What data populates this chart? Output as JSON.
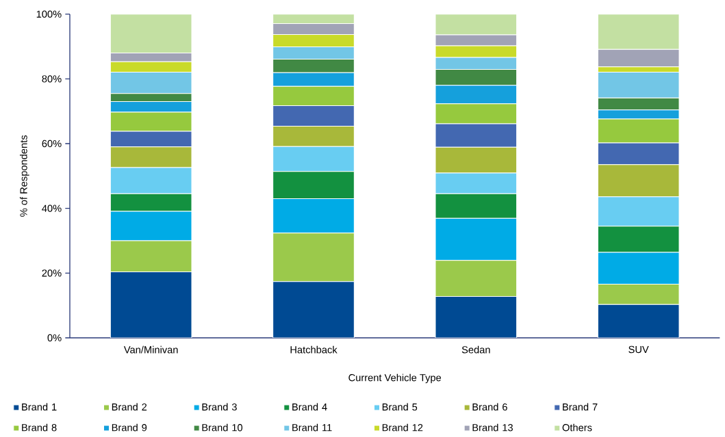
{
  "chart_data": {
    "type": "bar",
    "stacked": true,
    "xlabel": "Current Vehicle Type",
    "ylabel": "% of Respondents",
    "categories": [
      "Van/Minivan",
      "Hatchback",
      "Sedan",
      "SUV"
    ],
    "ylim": [
      0,
      100
    ],
    "yticks": [
      {
        "value": 0,
        "label": "0%"
      },
      {
        "value": 20,
        "label": "20%"
      },
      {
        "value": 40,
        "label": "40%"
      },
      {
        "value": 60,
        "label": "60%"
      },
      {
        "value": 80,
        "label": "80%"
      },
      {
        "value": 100,
        "label": "100%"
      }
    ],
    "legend": "bottom",
    "series": [
      {
        "name": "Brand 1",
        "color": "#004a93",
        "values": [
          20.4,
          17.4,
          12.8,
          10.3
        ]
      },
      {
        "name": "Brand 2",
        "color": "#9bc94b",
        "values": [
          9.6,
          15.0,
          11.1,
          6.3
        ]
      },
      {
        "name": "Brand 3",
        "color": "#00abe6",
        "values": [
          9.1,
          10.6,
          13.0,
          9.8
        ]
      },
      {
        "name": "Brand 4",
        "color": "#139140",
        "values": [
          5.4,
          8.4,
          7.6,
          8.1
        ]
      },
      {
        "name": "Brand 5",
        "color": "#68cdf2",
        "values": [
          8.1,
          7.7,
          6.4,
          9.1
        ]
      },
      {
        "name": "Brand 6",
        "color": "#a8b83a",
        "values": [
          6.4,
          6.3,
          8.0,
          9.9
        ]
      },
      {
        "name": "Brand 7",
        "color": "#4368b1",
        "values": [
          4.8,
          6.3,
          7.2,
          6.7
        ]
      },
      {
        "name": "Brand 8",
        "color": "#96c93e",
        "values": [
          5.9,
          6.0,
          6.2,
          7.4
        ]
      },
      {
        "name": "Brand 9",
        "color": "#15a0dc",
        "values": [
          3.3,
          4.2,
          5.7,
          2.8
        ]
      },
      {
        "name": "Brand 10",
        "color": "#418944",
        "values": [
          2.5,
          4.2,
          4.9,
          3.7
        ]
      },
      {
        "name": "Brand 11",
        "color": "#72c6e6",
        "values": [
          6.6,
          3.8,
          3.7,
          8.0
        ]
      },
      {
        "name": "Brand 12",
        "color": "#c9da2a",
        "values": [
          3.2,
          3.8,
          3.6,
          1.6
        ]
      },
      {
        "name": "Brand 13",
        "color": "#a1a3b6",
        "values": [
          2.7,
          3.4,
          3.4,
          5.4
        ]
      },
      {
        "name": "Others",
        "color": "#c3e0a2",
        "values": [
          12.0,
          2.9,
          6.4,
          10.9
        ]
      }
    ]
  }
}
